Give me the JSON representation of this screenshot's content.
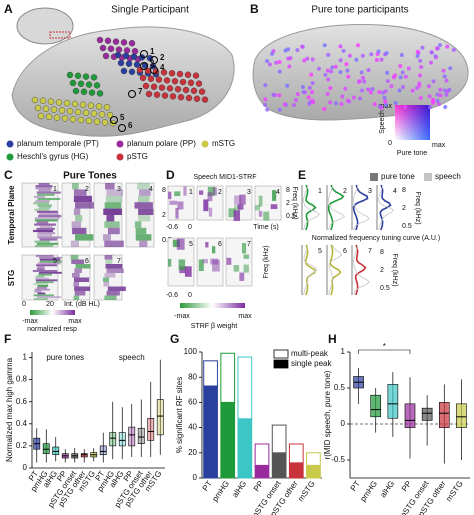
{
  "panels": {
    "A": {
      "label": "A",
      "title": "Single Participant",
      "electrodes": [
        "1",
        "2",
        "3",
        "4",
        "5",
        "6",
        "7"
      ],
      "legend": [
        {
          "name": "planum temporale (PT)",
          "color": "#2b3f9e"
        },
        {
          "name": "planum polare (PP)",
          "color": "#9a2b9e"
        },
        {
          "name": "mSTG",
          "color": "#c9c94a"
        },
        {
          "name": "Heschl's gyrus (HG)",
          "color": "#1e9a3a"
        },
        {
          "name": "pSTG",
          "color": "#c8323a"
        }
      ]
    },
    "B": {
      "label": "B",
      "title": "Pure tone participants",
      "colorbar": {
        "max_top": "max",
        "y_label": "Speech",
        "zero": "0",
        "max_right": "max",
        "x_label": "Pure tone"
      }
    },
    "C": {
      "label": "C",
      "title": "Pure Tones",
      "rows": [
        "Temporal Plane",
        "STG"
      ],
      "cells": [
        "1",
        "2",
        "3",
        "4",
        "5",
        "6",
        "7"
      ],
      "x_ticks": [
        "0",
        "20"
      ],
      "x_label": "Int. (dB HL)",
      "y_ticks": [
        "8",
        "2",
        "0.5"
      ],
      "colorbar": {
        "min": "-max",
        "max": "max",
        "label": "normalized resp"
      }
    },
    "D": {
      "label": "D",
      "title": "Speech MID1-STRF",
      "cells": [
        "1",
        "2",
        "3",
        "4",
        "5",
        "6",
        "7"
      ],
      "y_label": "Freq (kHz)",
      "x_ticks": [
        "-0.6",
        "0"
      ],
      "x_label": "Time (s)",
      "y_ticks": [
        "8",
        "2",
        "0.5"
      ],
      "colorbar": {
        "min": "-max",
        "max": "max",
        "label": "STRF β weight"
      }
    },
    "E": {
      "label": "E",
      "legend": [
        {
          "name": "pure tone",
          "color": "#777777"
        },
        {
          "name": "speech",
          "color": "#c4c4c4"
        }
      ],
      "cells": [
        "1",
        "2",
        "3",
        "4",
        "5",
        "6",
        "7"
      ],
      "x_label": "Normalized frequency tuning curve (A.U.)",
      "y_label": "Freq (kHz)",
      "y_ticks": [
        "8",
        "2",
        "0.5"
      ]
    }
  },
  "chart_data": [
    {
      "type": "box",
      "panel_label": "F",
      "y_label": "Normalized max high gamma",
      "categories": [
        "PT",
        "pmHG",
        "alHG",
        "PP",
        "pSTG onset",
        "pSTG other",
        "mSTG"
      ],
      "colors": [
        "#2b3f9e",
        "#1e9a3a",
        "#3dc6c6",
        "#9a2b9e",
        "#555555",
        "#c8323a",
        "#c9c94a"
      ],
      "ylim": [
        0,
        1.05
      ],
      "yticks": [
        0,
        0.2,
        0.4,
        0.6,
        0.8,
        1
      ],
      "series": [
        {
          "name": "pure tones",
          "min": [
            0.05,
            0.05,
            0.06,
            0.05,
            0.05,
            0.05,
            0.06
          ],
          "q1": [
            0.17,
            0.13,
            0.12,
            0.09,
            0.09,
            0.1,
            0.1
          ],
          "median": [
            0.22,
            0.17,
            0.15,
            0.11,
            0.11,
            0.12,
            0.12
          ],
          "q3": [
            0.27,
            0.22,
            0.19,
            0.13,
            0.13,
            0.13,
            0.14
          ],
          "max": [
            0.36,
            0.35,
            0.28,
            0.17,
            0.18,
            0.17,
            0.18
          ]
        },
        {
          "name": "speech",
          "min": [
            0.05,
            0.08,
            0.08,
            0.1,
            0.1,
            0.1,
            0.12
          ],
          "q1": [
            0.12,
            0.2,
            0.2,
            0.2,
            0.22,
            0.25,
            0.3
          ],
          "median": [
            0.15,
            0.27,
            0.25,
            0.3,
            0.28,
            0.33,
            0.47
          ],
          "q3": [
            0.2,
            0.32,
            0.32,
            0.37,
            0.36,
            0.45,
            0.62
          ],
          "max": [
            0.32,
            0.6,
            0.55,
            0.58,
            0.62,
            0.78,
            0.98
          ]
        }
      ]
    },
    {
      "type": "stacked_bar",
      "panel_label": "G",
      "y_label": "% significant RF sites",
      "categories": [
        "PT",
        "pmHG",
        "alHG",
        "PP",
        "pSTG onset",
        "pSTG other",
        "mSTG"
      ],
      "colors": [
        "#2b3f9e",
        "#1e9a3a",
        "#3dc6c6",
        "#9a2b9e",
        "#555555",
        "#c8323a",
        "#c9c94a"
      ],
      "ylim": [
        0,
        100
      ],
      "yticks": [
        0,
        20,
        40,
        60,
        80,
        100
      ],
      "series": [
        {
          "name": "single peak",
          "values": [
            73,
            60,
            47,
            10,
            20,
            12,
            10
          ]
        },
        {
          "name": "multi-peak",
          "values": [
            20,
            39,
            49,
            17,
            22,
            15,
            10
          ]
        }
      ]
    },
    {
      "type": "box",
      "panel_label": "H",
      "y_label": "r(MID speech, pure tone)",
      "categories": [
        "PT",
        "pmHG",
        "alHG",
        "PP",
        "pSTG onset",
        "pSTG other",
        "mSTG"
      ],
      "colors": [
        "#2b3f9e",
        "#1e9a3a",
        "#3dc6c6",
        "#9a2b9e",
        "#555555",
        "#c8323a",
        "#c9c94a"
      ],
      "ylim": [
        -0.75,
        1.0
      ],
      "yticks": [
        -0.5,
        0,
        0.5,
        1
      ],
      "zero_line": true,
      "significance": "*",
      "series": [
        {
          "min": [
            0.28,
            -0.12,
            -0.18,
            -0.48,
            -0.3,
            -0.55,
            -0.5
          ],
          "q1": [
            0.5,
            0.1,
            0.08,
            -0.05,
            0.05,
            -0.05,
            -0.05
          ],
          "median": [
            0.58,
            0.2,
            0.28,
            0.05,
            0.15,
            0.15,
            0.1
          ],
          "q3": [
            0.66,
            0.4,
            0.55,
            0.28,
            0.22,
            0.3,
            0.28
          ],
          "max": [
            0.78,
            0.5,
            0.72,
            0.65,
            0.4,
            0.55,
            0.62
          ]
        }
      ]
    }
  ]
}
